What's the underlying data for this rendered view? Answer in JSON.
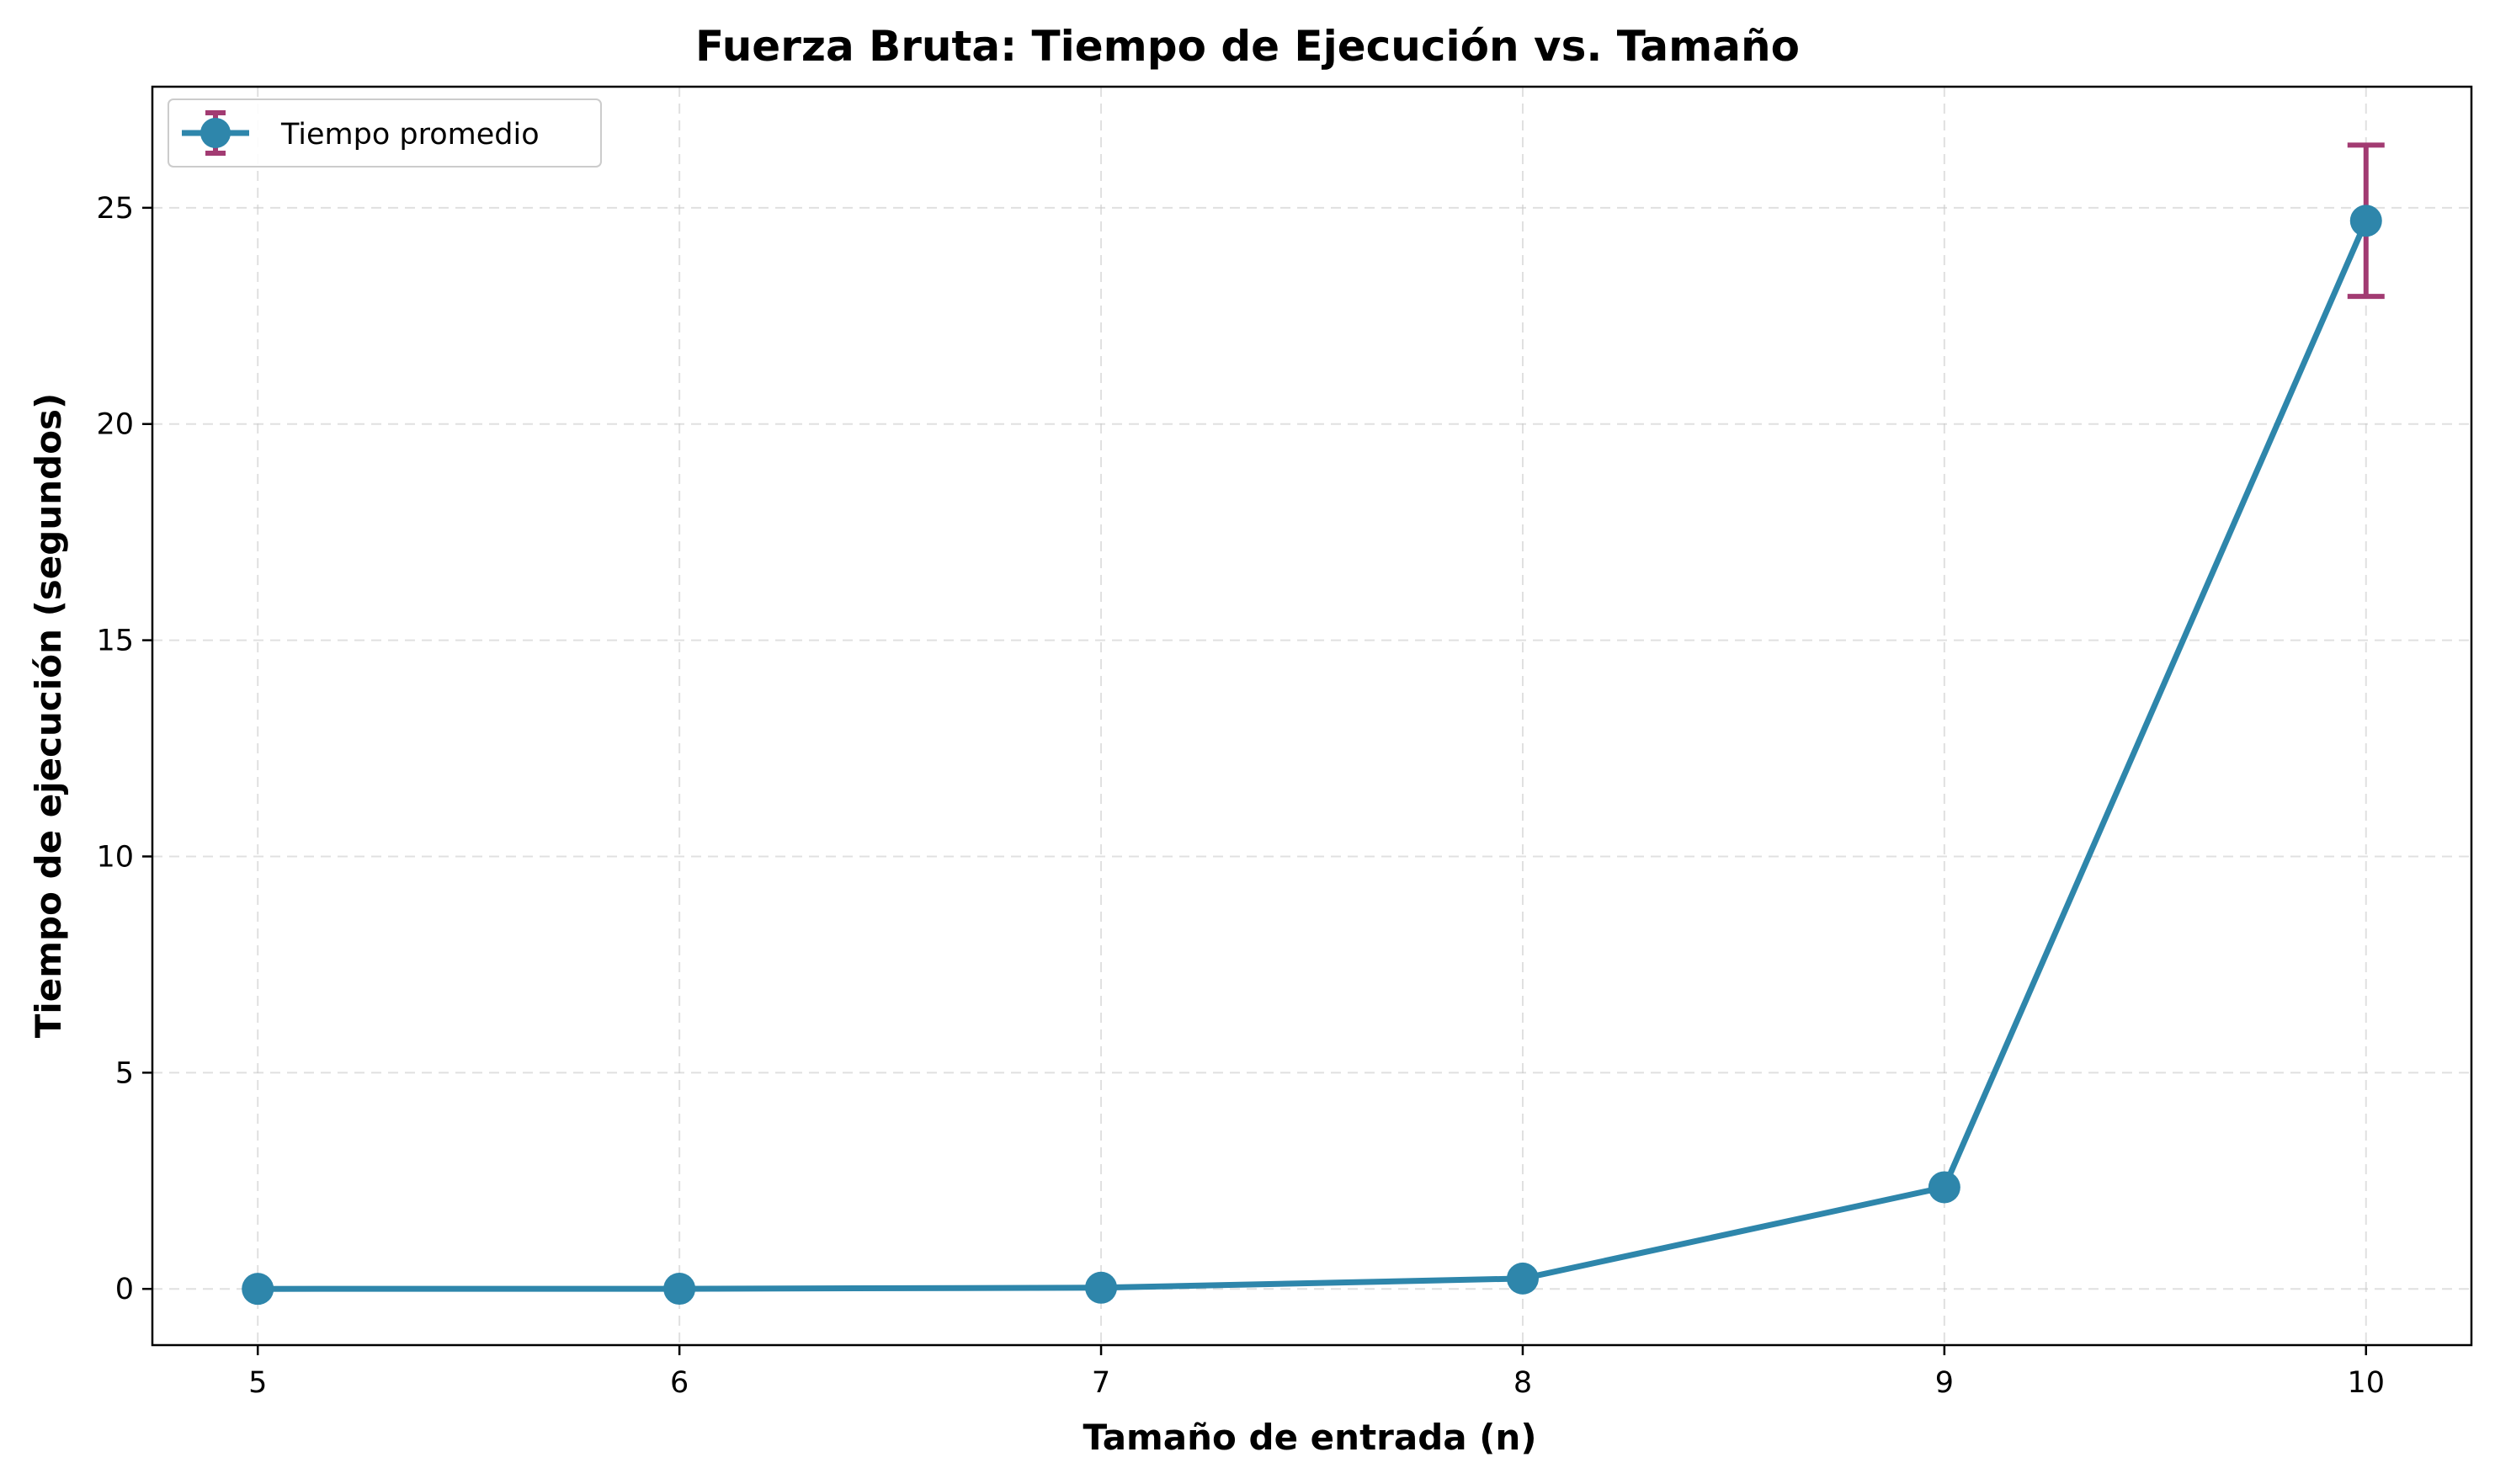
{
  "chart_data": {
    "type": "line",
    "title": "Fuerza Bruta: Tiempo de Ejecución vs. Tamaño",
    "xlabel": "Tamaño de entrada (n)",
    "ylabel": "Tiempo de ejecución (segundos)",
    "x": [
      5,
      6,
      7,
      8,
      9,
      10
    ],
    "xlim": [
      4.75,
      10.25
    ],
    "ylim": [
      -1.3,
      27.8
    ],
    "x_ticks": [
      5,
      6,
      7,
      8,
      9,
      10
    ],
    "y_ticks": [
      0,
      5,
      10,
      15,
      20,
      25
    ],
    "x_tick_labels": [
      "5",
      "6",
      "7",
      "8",
      "9",
      "10"
    ],
    "y_tick_labels": [
      "0",
      "5",
      "10",
      "15",
      "20",
      "25"
    ],
    "grid": true,
    "legend_position": "top-left",
    "series": [
      {
        "name": "Tiempo promedio",
        "values": [
          0.0005,
          0.003,
          0.028,
          0.24,
          2.35,
          24.7
        ],
        "error": [
          0.0,
          0.0,
          0.0,
          0.0,
          0.0,
          1.75
        ],
        "color": "#2e86ab",
        "error_color": "#a23b72"
      }
    ]
  }
}
